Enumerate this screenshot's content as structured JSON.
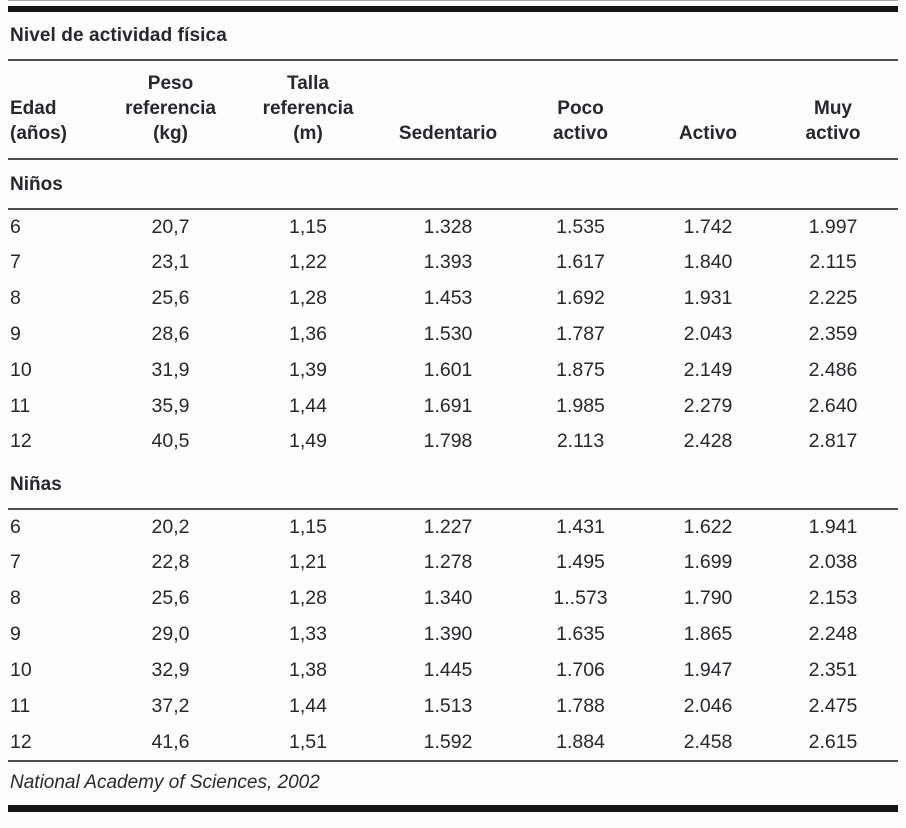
{
  "table": {
    "title": "Nivel de actividad física",
    "columns": [
      {
        "label": "Edad\n(años)"
      },
      {
        "label": "Peso\nreferencia\n(kg)"
      },
      {
        "label": "Talla\nreferencia\n(m)"
      },
      {
        "label": "Sedentario"
      },
      {
        "label": "Poco\nactivo"
      },
      {
        "label": "Activo"
      },
      {
        "label": "Muy\nactivo"
      }
    ],
    "sections": [
      {
        "label": "Niños",
        "rows": [
          [
            "6",
            "20,7",
            "1,15",
            "1.328",
            "1.535",
            "1.742",
            "1.997"
          ],
          [
            "7",
            "23,1",
            "1,22",
            "1.393",
            "1.617",
            "1.840",
            "2.115"
          ],
          [
            "8",
            "25,6",
            "1,28",
            "1.453",
            "1.692",
            "1.931",
            "2.225"
          ],
          [
            "9",
            "28,6",
            "1,36",
            "1.530",
            "1.787",
            "2.043",
            "2.359"
          ],
          [
            "10",
            "31,9",
            "1,39",
            "1.601",
            "1.875",
            "2.149",
            "2.486"
          ],
          [
            "11",
            "35,9",
            "1,44",
            "1.691",
            "1.985",
            "2.279",
            "2.640"
          ],
          [
            "12",
            "40,5",
            "1,49",
            "1.798",
            "2.113",
            "2.428",
            "2.817"
          ]
        ]
      },
      {
        "label": "Niñas",
        "rows": [
          [
            "6",
            "20,2",
            "1,15",
            "1.227",
            "1.431",
            "1.622",
            "1.941"
          ],
          [
            "7",
            "22,8",
            "1,21",
            "1.278",
            "1.495",
            "1.699",
            "2.038"
          ],
          [
            "8",
            "25,6",
            "1,28",
            "1.340",
            "1..573",
            "1.790",
            "2.153"
          ],
          [
            "9",
            "29,0",
            "1,33",
            "1.390",
            "1.635",
            "1.865",
            "2.248"
          ],
          [
            "10",
            "32,9",
            "1,38",
            "1.445",
            "1.706",
            "1.947",
            "2.351"
          ],
          [
            "11",
            "37,2",
            "1,44",
            "1.513",
            "1.788",
            "2.046",
            "2.475"
          ],
          [
            "12",
            "41,6",
            "1,51",
            "1.592",
            "1.884",
            "2.458",
            "2.615"
          ]
        ]
      }
    ],
    "footer": "National Academy of Sciences, 2002"
  },
  "colors": {
    "text": "#29272c",
    "rule": "#4e4e4e",
    "bar": "#161616",
    "background": "#fdfdfd"
  }
}
